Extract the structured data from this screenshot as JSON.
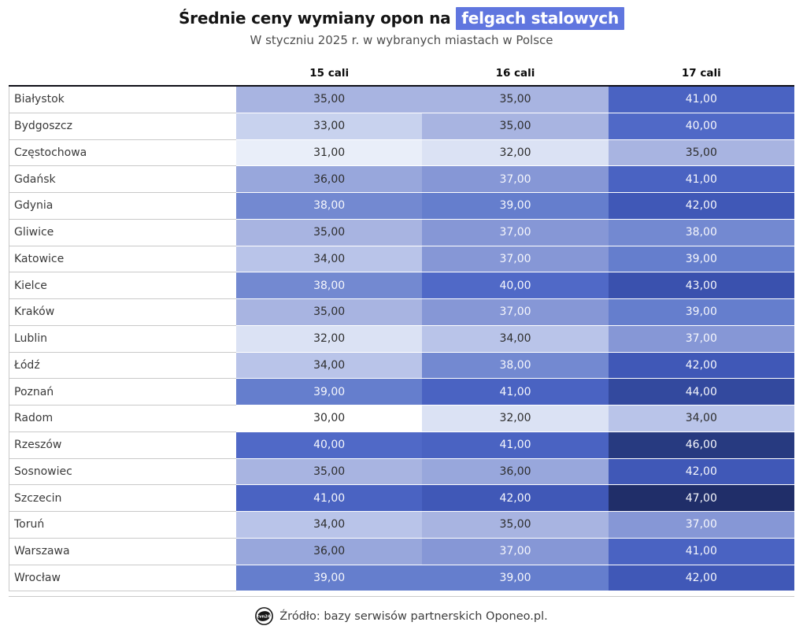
{
  "title": {
    "prefix": "Średnie ceny wymiany opon na ",
    "highlight": "felgach stalowych",
    "highlight_bg": "#6076df",
    "subtitle": "W styczniu 2025 r. w wybranych miastach w Polsce"
  },
  "chart_data": {
    "type": "heatmap",
    "columns": [
      "15 cali",
      "16 cali",
      "17 cali"
    ],
    "rows": [
      {
        "city": "Białystok",
        "values": [
          35,
          35,
          41
        ]
      },
      {
        "city": "Bydgoszcz",
        "values": [
          33,
          35,
          40
        ]
      },
      {
        "city": "Częstochowa",
        "values": [
          31,
          32,
          35
        ]
      },
      {
        "city": "Gdańsk",
        "values": [
          36,
          37,
          41
        ]
      },
      {
        "city": "Gdynia",
        "values": [
          38,
          39,
          42
        ]
      },
      {
        "city": "Gliwice",
        "values": [
          35,
          37,
          38
        ]
      },
      {
        "city": "Katowice",
        "values": [
          34,
          37,
          39
        ]
      },
      {
        "city": "Kielce",
        "values": [
          38,
          40,
          43
        ]
      },
      {
        "city": "Kraków",
        "values": [
          35,
          37,
          39
        ]
      },
      {
        "city": "Lublin",
        "values": [
          32,
          34,
          37
        ]
      },
      {
        "city": "Łódź",
        "values": [
          34,
          38,
          42
        ]
      },
      {
        "city": "Poznań",
        "values": [
          39,
          41,
          44
        ]
      },
      {
        "city": "Radom",
        "values": [
          30,
          32,
          34
        ]
      },
      {
        "city": "Rzeszów",
        "values": [
          40,
          41,
          46
        ]
      },
      {
        "city": "Sosnowiec",
        "values": [
          35,
          36,
          42
        ]
      },
      {
        "city": "Szczecin",
        "values": [
          41,
          42,
          47
        ]
      },
      {
        "city": "Toruń",
        "values": [
          34,
          35,
          37
        ]
      },
      {
        "city": "Warszawa",
        "values": [
          36,
          37,
          41
        ]
      },
      {
        "city": "Wrocław",
        "values": [
          39,
          39,
          42
        ]
      }
    ],
    "value_range": [
      30,
      47
    ],
    "decimal_separator": ",",
    "decimals": 2,
    "white_text_min": 37,
    "text_dark": "#2d2d2d",
    "text_light": "#f6f7fc",
    "value_colors": {
      "30": "#ffffff",
      "31": "#e9eef9",
      "32": "#dbe2f4",
      "33": "#c8d2ee",
      "34": "#b9c4e9",
      "35": "#a8b4e1",
      "36": "#98a7dc",
      "37": "#8697d6",
      "38": "#7389d1",
      "39": "#657ecd",
      "40": "#5069c7",
      "41": "#4a63c2",
      "42": "#4058b7",
      "43": "#3a51ae",
      "44": "#33499e",
      "45": "#2d4190",
      "46": "#273a80",
      "47": "#202e69"
    }
  },
  "footer": {
    "logo_text": "tvn24",
    "source_label": "Źródło: bazy serwisów partnerskich Oponeo.pl."
  }
}
